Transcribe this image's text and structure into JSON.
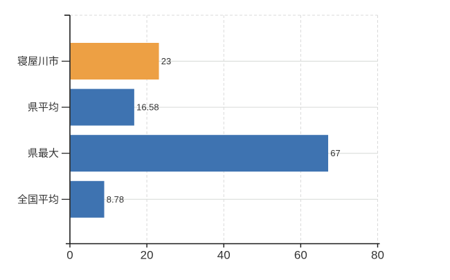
{
  "chart_data": {
    "type": "bar",
    "orientation": "horizontal",
    "title": "",
    "xlabel": "",
    "ylabel": "",
    "categories": [
      "寝屋川市",
      "県平均",
      "県最大",
      "全国平均"
    ],
    "values": [
      23,
      16.58,
      67,
      8.78
    ],
    "value_labels": [
      "23",
      "16.58",
      "67",
      "8.78"
    ],
    "bar_colors": [
      "#eda044",
      "#3e73b1",
      "#3e73b1",
      "#3e73b1"
    ],
    "x_ticks": [
      0,
      20,
      40,
      60,
      80
    ],
    "x_tick_labels": [
      "0",
      "20",
      "40",
      "60",
      "80"
    ],
    "xlim": [
      0,
      80
    ],
    "grid": true,
    "legend": false
  },
  "colors": {
    "bar_orange": "#eda044",
    "bar_blue": "#3e73b1",
    "grid_solid": "#d6d9d6",
    "grid_dashed": "#d9d9d9",
    "axis": "#1a1a1a",
    "label_text": "#333333",
    "background": "#ffffff"
  }
}
